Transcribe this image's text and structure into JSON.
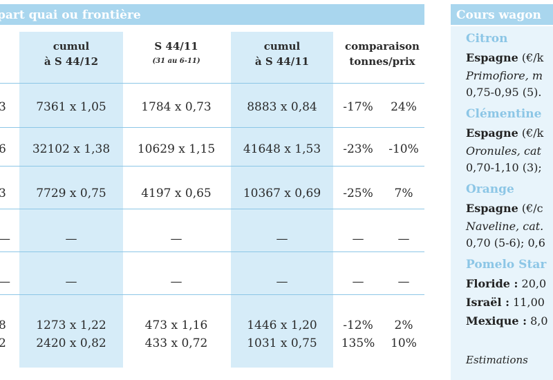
{
  "left_panel": {
    "title": "part quai ou frontière",
    "columns": [
      {
        "line1": "cumul",
        "line2": "à S 44/12",
        "sub": ""
      },
      {
        "line1": "S 44/11",
        "line2": "",
        "sub": "(31 au 6-11)"
      },
      {
        "line1": "cumul",
        "line2": "à S 44/11",
        "sub": ""
      },
      {
        "line1": "comparaison",
        "line2": "tonnes/prix",
        "sub": ""
      }
    ],
    "rows": [
      {
        "edge": "3",
        "c1": "7361 x 1,05",
        "c2": "1784 x 0,73",
        "c3": "8883 x 0,84",
        "pct_t": "-17%",
        "pct_p": "24%"
      },
      {
        "edge": "6",
        "c1": "32102 x 1,38",
        "c2": "10629 x 1,15",
        "c3": "41648 x 1,53",
        "pct_t": "-23%",
        "pct_p": "-10%"
      },
      {
        "edge": "3",
        "c1": "7729 x 0,75",
        "c2": "4197 x 0,65",
        "c3": "10367 x 0,69",
        "pct_t": "-25%",
        "pct_p": "7%"
      },
      {
        "edge": "—",
        "c1": "—",
        "c2": "—",
        "c3": "—",
        "pct_t": "—",
        "pct_p": "—"
      },
      {
        "edge": "—",
        "c1": "—",
        "c2": "—",
        "c3": "—",
        "pct_t": "—",
        "pct_p": "—"
      },
      {
        "edge": "8",
        "c1": "1273 x 1,22",
        "c2": "473 x 1,16",
        "c3": "1446 x 1,20",
        "pct_t": "-12%",
        "pct_p": "2%"
      },
      {
        "edge": "2",
        "c1": "2420 x 0,82",
        "c2": "433 x 0,72",
        "c3": "1031 x 0,75",
        "pct_t": "135%",
        "pct_p": "10%"
      }
    ]
  },
  "right_panel": {
    "title": "Cours wagon",
    "lines": [
      {
        "kind": "fruit",
        "text": "Citron"
      },
      {
        "kind": "country",
        "text": "Espagne",
        "rest": " (€/k"
      },
      {
        "kind": "italic",
        "text": "Primofiore, m"
      },
      {
        "kind": "plain",
        "text": "0,75-0,95 (5)."
      },
      {
        "kind": "fruit",
        "text": "Clémentine"
      },
      {
        "kind": "country",
        "text": "Espagne",
        "rest": " (€/k"
      },
      {
        "kind": "italic",
        "text": "Oronules, cat"
      },
      {
        "kind": "plain",
        "text": "0,70-1,10 (3);"
      },
      {
        "kind": "fruit",
        "text": "Orange"
      },
      {
        "kind": "country",
        "text": "Espagne",
        "rest": " (€/c"
      },
      {
        "kind": "italic",
        "text": "Naveline, cat."
      },
      {
        "kind": "plain",
        "text": "0,70 (5-6); 0,6"
      },
      {
        "kind": "fruit",
        "text": "Pomelo Star"
      },
      {
        "kind": "country",
        "text": "Floride :",
        "rest": " 20,0"
      },
      {
        "kind": "country",
        "text": "Israël :",
        "rest": " 11,00"
      },
      {
        "kind": "country",
        "text": "Mexique :",
        "rest": " 8,0"
      },
      {
        "kind": "italic",
        "text": "Estimations"
      }
    ]
  }
}
